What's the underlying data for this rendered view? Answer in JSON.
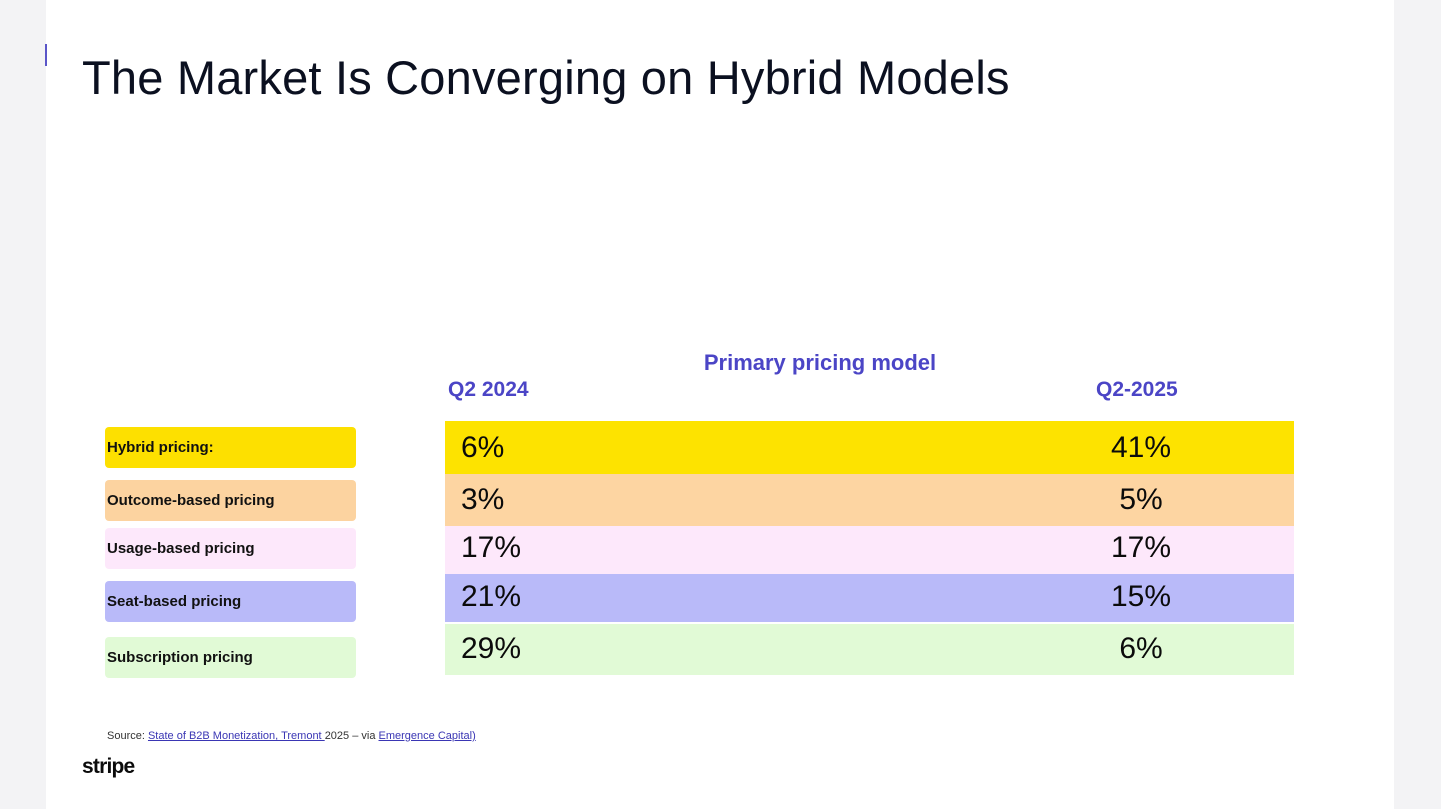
{
  "slide": {
    "title": "The Market Is Converging on Hybrid Models",
    "table_heading": "Primary pricing model",
    "columns": [
      "Q2 2024",
      "Q2-2025"
    ],
    "rows": [
      {
        "label": "Hybrid pricing:",
        "q2_2024": "6%",
        "q2_2025": "41%",
        "label_color": "#fde000",
        "band_color": "#fde300"
      },
      {
        "label": "Outcome-based pricing",
        "q2_2024": "3%",
        "q2_2025": "5%",
        "label_color": "#fcd3a0",
        "band_color": "#fdd5a2"
      },
      {
        "label": "Usage-based pricing",
        "q2_2024": "17%",
        "q2_2025": "17%",
        "label_color": "#fde8fb",
        "band_color": "#fde8fb"
      },
      {
        "label": "Seat-based pricing",
        "q2_2024": "21%",
        "q2_2025": "15%",
        "label_color": "#b9baf9",
        "band_color": "#b9baf9"
      },
      {
        "label": "Subscription pricing",
        "q2_2024": "29%",
        "q2_2025": "6%",
        "label_color": "#e1fad6",
        "band_color": "#e1fad6"
      }
    ],
    "source": {
      "prefix": "Source: ",
      "link1": "State of B2B Monetization, Tremont ",
      "middle": "2025 – via ",
      "link2": "Emergence Capital)"
    },
    "logo": "stripe"
  }
}
